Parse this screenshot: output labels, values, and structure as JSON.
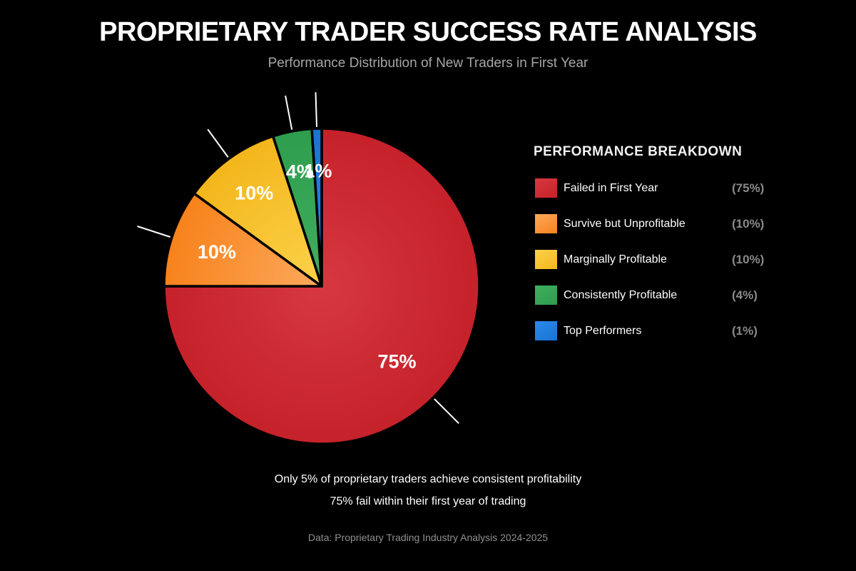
{
  "header": {
    "title": "PROPRIETARY TRADER SUCCESS RATE ANALYSIS",
    "subtitle": "Performance Distribution of New Traders in First Year"
  },
  "chart_data": {
    "type": "pie",
    "title": "PROPRIETARY TRADER SUCCESS RATE ANALYSIS",
    "subtitle": "Performance Distribution of New Traders in First Year",
    "start_angle_deg": 90,
    "direction": "clockwise",
    "categories": [
      "Failed in First Year",
      "Survive but Unprofitable",
      "Marginally Profitable",
      "Consistently Profitable",
      "Top Performers"
    ],
    "values": [
      75,
      10,
      10,
      4,
      1
    ],
    "slice_labels": [
      "75%",
      "10%",
      "10%",
      "4%",
      "1%"
    ],
    "colors": [
      "#cd2730",
      "#f8841d",
      "#f5bb21",
      "#35a353",
      "#1e7ce0"
    ],
    "gradients": [
      {
        "inner": "#d73840",
        "outer": "#c5212a"
      },
      {
        "inner": "#fca95d",
        "outer": "#f8821b"
      },
      {
        "inner": "#fcd24a",
        "outer": "#f3b61c"
      },
      {
        "inner": "#41ae60",
        "outer": "#2e9d4d"
      },
      {
        "inner": "#2b8aec",
        "outer": "#1973d1"
      }
    ],
    "slice_stroke_color": "#000000",
    "leader_line_color": "#ffffff",
    "slice_label_color": "#ffffff",
    "legend_position": "right",
    "background": "#000000"
  },
  "legend": {
    "title": "PERFORMANCE BREAKDOWN",
    "items": [
      {
        "label": "Failed in First Year",
        "pct": "(75%)"
      },
      {
        "label": "Survive but Unprofitable",
        "pct": "(10%)"
      },
      {
        "label": "Marginally Profitable",
        "pct": "(10%)"
      },
      {
        "label": "Consistently Profitable",
        "pct": "(4%)"
      },
      {
        "label": "Top Performers",
        "pct": "(1%)"
      }
    ]
  },
  "annotations": {
    "line1": "Only 5% of proprietary traders achieve consistent profitability",
    "line2": "75% fail within their first year of trading"
  },
  "footer": {
    "source": "Data: Proprietary Trading Industry Analysis 2024-2025"
  },
  "theme": {
    "background": "#000000",
    "title_color": "#ffffff",
    "subtitle_color": "#a6a6a6",
    "legend_title_color": "#f2f2f2",
    "legend_label_color": "#ffffff",
    "legend_pct_color": "#8a8a8a",
    "annotation_color": "#ffffff",
    "footer_color": "#8f8f8f"
  }
}
